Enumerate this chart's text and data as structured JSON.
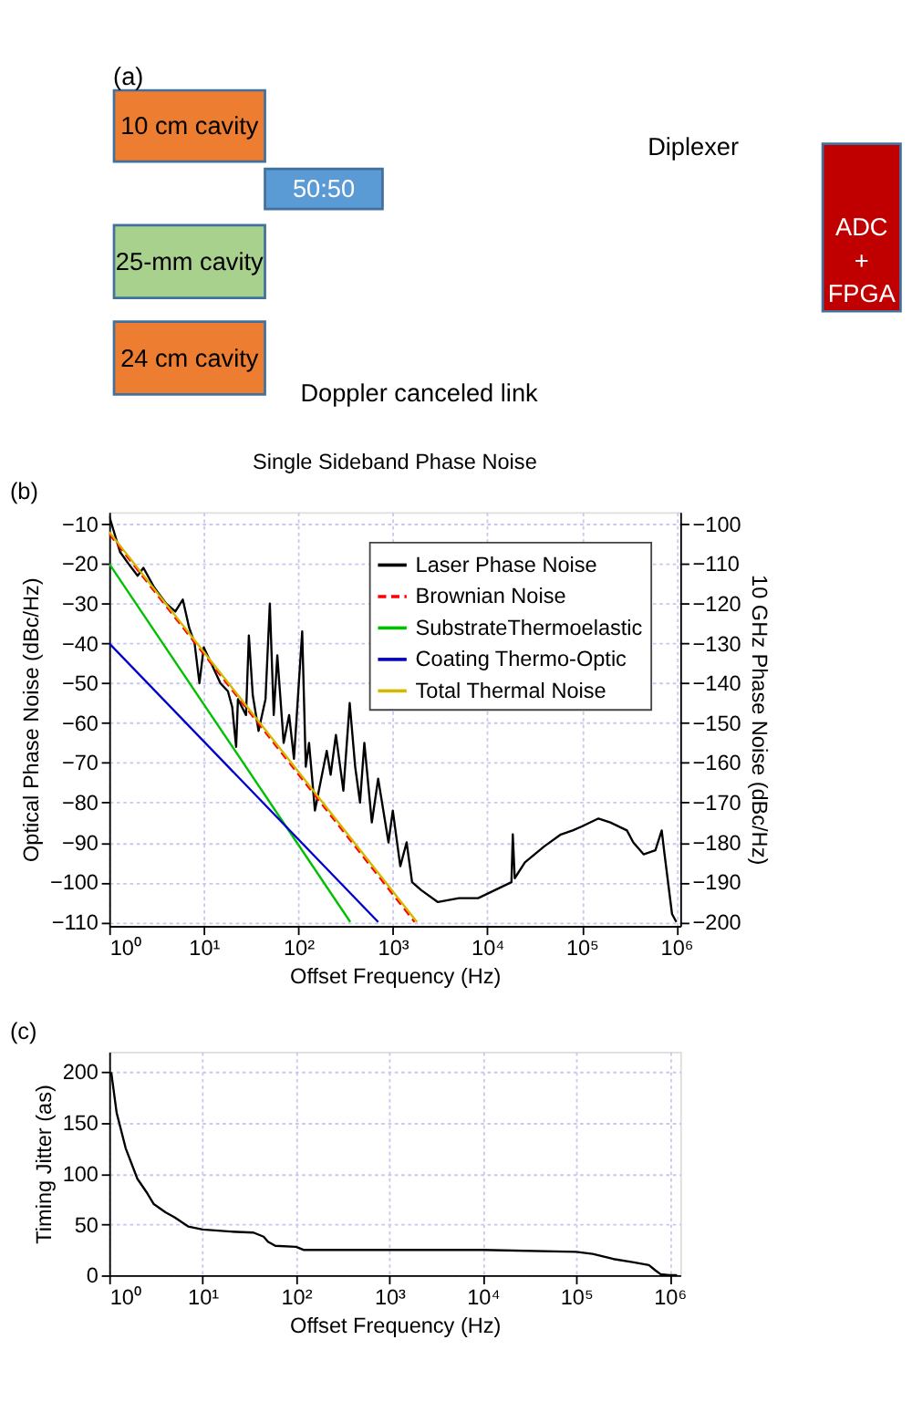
{
  "chart_data": [
    {
      "type": "other",
      "annotations": [
        "(a)",
        "10 cm cavity",
        "50:50",
        "25-mm cavity",
        "24 cm cavity",
        "Doppler canceled link",
        "Diplexer",
        "ADC + FPGA"
      ],
      "colors": [
        null,
        "#ed7d31",
        "#5b9bd5",
        "#a9d18e",
        "#ed7d31",
        null,
        null,
        "#c00000"
      ]
    },
    {
      "type": "line",
      "title": "Single Sideband Phase Noise",
      "xlabel": "Offset Frequency (Hz)",
      "ylabel": "Optical Phase Noise (dBc/Hz)",
      "y2label": "10 GHz Phase Noise (dBc/Hz)",
      "annotations": [
        "(b)"
      ],
      "log": "x",
      "grid": true,
      "legend": "top right",
      "xlim": [
        1,
        1100000
      ],
      "xticks": [
        {
          "value": 1,
          "label": "10⁰"
        },
        {
          "value": 10,
          "label": "10¹"
        },
        {
          "value": 100,
          "label": "10²"
        },
        {
          "value": 1000,
          "label": "10³"
        },
        {
          "value": 10000,
          "label": "10⁴"
        },
        {
          "value": 100000,
          "label": "10⁵"
        },
        {
          "value": 1000000,
          "label": "10⁶"
        }
      ],
      "ylim": [
        -111,
        -7
      ],
      "yticks": [
        -110,
        -100,
        -90,
        -80,
        -70,
        -60,
        -50,
        -40,
        -30,
        -20,
        -10
      ],
      "y2lim": [
        -201,
        -97
      ],
      "y2ticks": [
        -200,
        -190,
        -180,
        -170,
        -160,
        -150,
        -140,
        -130,
        -120,
        -110,
        -100
      ],
      "series": [
        {
          "name": "Laser Phase Noise",
          "color": "#000000",
          "line_style": "solid",
          "x": [
            1,
            1.3,
            1.6,
            2,
            2.3,
            3,
            4,
            5,
            6,
            7,
            8,
            9,
            10,
            12,
            15,
            18,
            20,
            22,
            23,
            28,
            30,
            33,
            38,
            45,
            50,
            55,
            60,
            70,
            80,
            90,
            110,
            120,
            130,
            150,
            200,
            220,
            250,
            300,
            350,
            400,
            450,
            500,
            600,
            700,
            900,
            1000,
            1200,
            1400,
            1600,
            2000,
            3000,
            5000,
            8000,
            12000,
            18000,
            18600,
            19500,
            25000,
            40000,
            60000,
            80000,
            100000,
            150000,
            200000,
            300000,
            350000,
            450000,
            600000,
            700000,
            750000,
            900000,
            1000000
          ],
          "values": [
            -8,
            -17,
            -20,
            -23,
            -21,
            -26,
            -30,
            -32,
            -29,
            -36,
            -40,
            -50,
            -41,
            -45,
            -50,
            -52,
            -56,
            -66,
            -54,
            -58,
            -38,
            -53,
            -62,
            -54,
            -30,
            -58,
            -43,
            -65,
            -58,
            -69,
            -37,
            -71,
            -65,
            -82,
            -67,
            -73,
            -63,
            -77,
            -55,
            -71,
            -80,
            -65,
            -85,
            -74,
            -90,
            -82,
            -96,
            -90,
            -100,
            -102,
            -105,
            -104,
            -104,
            -102,
            -100,
            -88,
            -99,
            -95,
            -91,
            -88,
            -87,
            -86,
            -84,
            -85,
            -87,
            -90,
            -93,
            -92,
            -87,
            -93,
            -108,
            -110
          ]
        },
        {
          "name": "Brownian Noise",
          "color": "#ff0000",
          "line_style": "dashed",
          "x": [
            1,
            1700
          ],
          "values": [
            -12.5,
            -110
          ]
        },
        {
          "name": "SubstrateThermoelastic",
          "color": "#00c000",
          "line_style": "solid",
          "x": [
            1,
            355
          ],
          "values": [
            -20,
            -110
          ]
        },
        {
          "name": "Coating Thermo-Optic",
          "color": "#0000cc",
          "line_style": "solid",
          "x": [
            1,
            700
          ],
          "values": [
            -40,
            -110
          ]
        },
        {
          "name": "Total Thermal Noise",
          "color": "#d4b800",
          "line_style": "solid",
          "x": [
            1,
            1800
          ],
          "values": [
            -12,
            -110
          ]
        }
      ]
    },
    {
      "type": "line",
      "xlabel": "Offset Frequency (Hz)",
      "ylabel": "Timing Jitter (as)",
      "annotations": [
        "(c)"
      ],
      "log": "x",
      "grid": true,
      "xlim": [
        1,
        1300000
      ],
      "xticks": [
        {
          "value": 1,
          "label": "10⁰"
        },
        {
          "value": 10,
          "label": "10¹"
        },
        {
          "value": 100,
          "label": "10²"
        },
        {
          "value": 1000,
          "label": "10³"
        },
        {
          "value": 10000,
          "label": "10⁴"
        },
        {
          "value": 100000,
          "label": "10⁵"
        },
        {
          "value": 1000000,
          "label": "10⁶"
        }
      ],
      "ylim": [
        0,
        220
      ],
      "yticks": [
        0,
        50,
        100,
        150,
        200
      ],
      "series": [
        {
          "color": "#000000",
          "line_style": "solid",
          "x": [
            1.05,
            1.2,
            1.5,
            2,
            2.5,
            3,
            4,
            5,
            7,
            10,
            20,
            35,
            45,
            50,
            60,
            100,
            120,
            1000,
            10000,
            100000,
            150000,
            250000,
            400000,
            600000,
            700000,
            800000,
            1000000,
            1200000
          ],
          "values": [
            200,
            160,
            125,
            95,
            82,
            70,
            62,
            57,
            48,
            45,
            43,
            42,
            38,
            33,
            29,
            28,
            25,
            25,
            25,
            23,
            21,
            16,
            13,
            10,
            5,
            1,
            0,
            0
          ]
        }
      ]
    }
  ]
}
